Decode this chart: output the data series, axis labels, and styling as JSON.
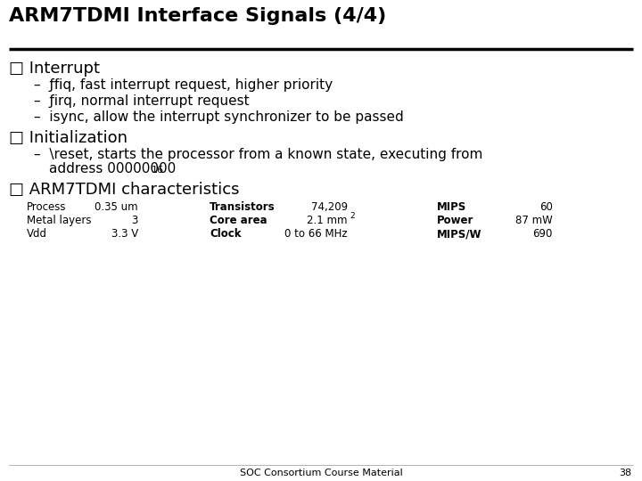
{
  "title": "ARM7TDMI Interface Signals (4/4)",
  "bg_color": "#ffffff",
  "title_color": "#000000",
  "title_fontsize": 16,
  "body_fontsize": 11,
  "header_fontsize": 13,
  "small_fontsize": 8.5,
  "footer_text": "SOC Consortium Course Material",
  "footer_number": "38",
  "section1_header": "□ Interrupt",
  "section1_bullets": [
    "–  ƒfiq, fast interrupt request, higher priority",
    "–  ƒirq, normal interrupt request",
    "–  isync, allow the interrupt synchronizer to be passed"
  ],
  "section2_header": "□ Initialization",
  "section3_header": "□ ARM7TDMI characteristics",
  "table_rows": [
    [
      "Process",
      "0.35 um",
      "Transistors",
      "74,209",
      "MIPS",
      "60"
    ],
    [
      "Metal layers",
      "3",
      "Core area",
      "2.1 mm",
      "Power",
      "87 mW"
    ],
    [
      "Vdd",
      "3.3 V",
      "Clock",
      "0 to 66 MHz",
      "MIPS/W",
      "690"
    ]
  ],
  "table_bold_cols": [
    2,
    4
  ],
  "divider_color": "#000000"
}
